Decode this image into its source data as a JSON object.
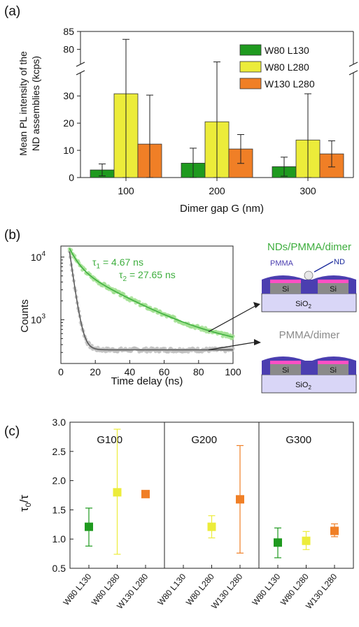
{
  "panel_labels": [
    "(a)",
    "(b)",
    "(c)"
  ],
  "colors": {
    "green": "#1f9a1f",
    "yellow": "#ecec3a",
    "orange": "#f07f26",
    "decay_green": "#3eae3e",
    "decay_green_light": "#9fe08f",
    "decay_gray": "#555555",
    "decay_gray_light": "#bdbdbd",
    "pmma": "#4b3eb0",
    "pink": "#ff4fc4",
    "si": "#8a8a8a",
    "sio2": "#d9d6f7"
  },
  "schematic": {
    "top_title": "NDs/PMMA/dimer",
    "bottom_title": "PMMA/dimer",
    "pmma_label": "PMMA",
    "nd_label": "ND",
    "si_label": "Si",
    "sio2_label": "SiO",
    "sio2_sub": "2"
  },
  "chart_data": [
    {
      "type": "bar",
      "panel": "(a)",
      "xlabel": "Dimer gap G (nm)",
      "ylabel_line1": "Mean PL intensity of the",
      "ylabel_line2": "ND assemblies (kcps)",
      "categories": [
        "100",
        "200",
        "300"
      ],
      "yticks_lower": [
        "0",
        "10",
        "20",
        "30"
      ],
      "yticks_upper": [
        "80",
        "85"
      ],
      "ylim_lower": [
        0,
        37
      ],
      "ylim_upper": [
        77,
        85
      ],
      "axis_break": true,
      "legend_position": "top-right",
      "series": [
        {
          "name": "W80  L130",
          "color": "green",
          "values": [
            2.8,
            5.3,
            4.0
          ],
          "errors": [
            2.2,
            5.5,
            3.5
          ]
        },
        {
          "name": "W80  L280",
          "color": "yellow",
          "values": [
            30.8,
            20.5,
            13.8
          ],
          "errors": [
            52.0,
            56.0,
            17.0
          ]
        },
        {
          "name": "W130  L280",
          "color": "orange",
          "values": [
            12.3,
            10.5,
            8.7
          ],
          "errors": [
            18.0,
            5.3,
            4.8
          ]
        }
      ]
    },
    {
      "type": "scatter",
      "panel": "(b)",
      "xlabel": "Time delay (ns)",
      "ylabel": "Counts",
      "xlim": [
        0,
        100
      ],
      "xticks": [
        "0",
        "20",
        "40",
        "60",
        "80",
        "100"
      ],
      "ylim": [
        200,
        15000
      ],
      "yscale": "log",
      "yticks": [
        "10",
        "10"
      ],
      "ytick_exponents": [
        "3",
        "4"
      ],
      "ytick_values": [
        1000,
        10000
      ],
      "annotation_tau1": "τ",
      "annotation_tau1_sub": "1",
      "annotation_tau1_value": " = 4.67 ns",
      "annotation_tau2": "τ",
      "annotation_tau2_sub": "2",
      "annotation_tau2_value": " = 27.65 ns",
      "series": [
        {
          "name": "NDs/PMMA/dimer",
          "color": "decay_green",
          "A1": 7000,
          "tau1": 4.67,
          "A2": 6500,
          "tau2": 27.65,
          "t0": 5,
          "floor": 320
        },
        {
          "name": "PMMA/dimer",
          "color": "decay_gray",
          "A": 12000,
          "tau": 2.2,
          "t0": 5,
          "floor": 330
        }
      ]
    },
    {
      "type": "scatter",
      "panel": "(c)",
      "ylabel": "τ",
      "ylabel_sub": "0",
      "ylabel_rest": "/τ",
      "ylim": [
        0.5,
        3.0
      ],
      "yticks": [
        "0.5",
        "1.0",
        "1.5",
        "2.0",
        "2.5",
        "3.0"
      ],
      "groups": [
        "G100",
        "G200",
        "G300"
      ],
      "categories": [
        "W80 L130",
        "W80 L280",
        "W130 L280"
      ],
      "points": [
        {
          "group": 0,
          "cat": 0,
          "y": 1.21,
          "lo": 0.88,
          "hi": 1.53,
          "color": "green"
        },
        {
          "group": 0,
          "cat": 1,
          "y": 1.8,
          "lo": 0.74,
          "hi": 2.88,
          "color": "yellow"
        },
        {
          "group": 0,
          "cat": 2,
          "y": 1.77,
          "lo": 1.75,
          "hi": 1.79,
          "color": "orange"
        },
        {
          "group": 1,
          "cat": 1,
          "y": 1.21,
          "lo": 1.02,
          "hi": 1.4,
          "color": "yellow"
        },
        {
          "group": 1,
          "cat": 2,
          "y": 1.68,
          "lo": 0.76,
          "hi": 2.6,
          "color": "orange"
        },
        {
          "group": 2,
          "cat": 0,
          "y": 0.94,
          "lo": 0.68,
          "hi": 1.19,
          "color": "green"
        },
        {
          "group": 2,
          "cat": 1,
          "y": 0.97,
          "lo": 0.82,
          "hi": 1.13,
          "color": "yellow"
        },
        {
          "group": 2,
          "cat": 2,
          "y": 1.14,
          "lo": 1.04,
          "hi": 1.26,
          "color": "orange"
        }
      ]
    }
  ]
}
